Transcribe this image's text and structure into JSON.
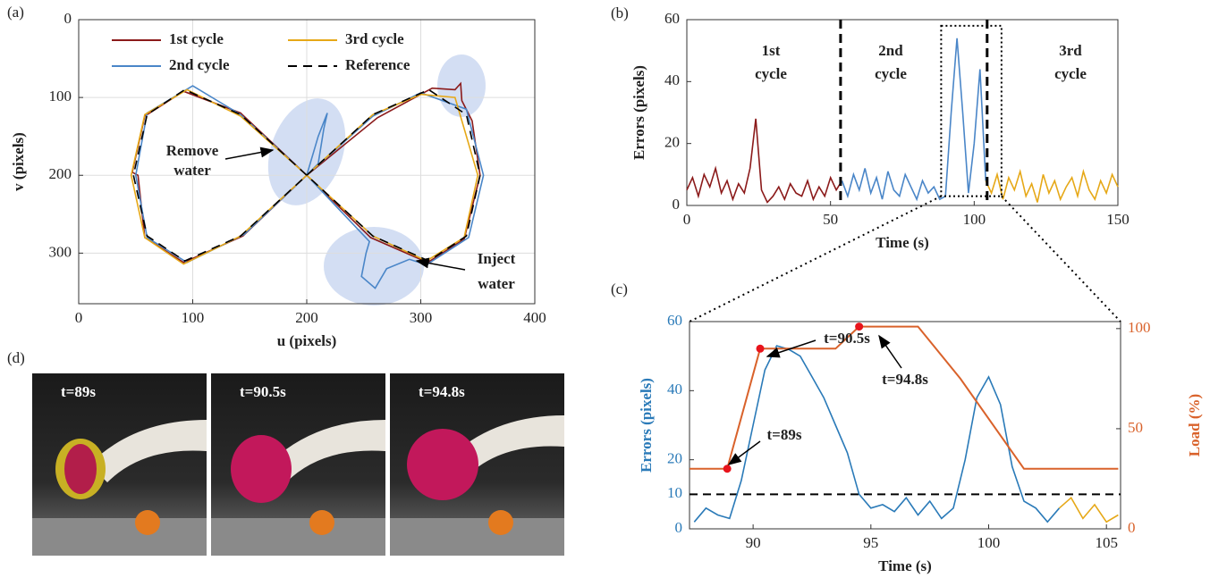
{
  "chart_data": [
    {
      "type": "line",
      "panel_label": "(a)",
      "xlabel": "u (pixels)",
      "ylabel": "v (pixels)",
      "xlim": [
        0,
        400
      ],
      "ylim": [
        0,
        365
      ],
      "y_inverted": true,
      "grid": true,
      "legend": "top",
      "xticks": [
        0,
        100,
        200,
        300,
        400
      ],
      "yticks": [
        0,
        100,
        200,
        300
      ],
      "series": [
        {
          "name": "1st cycle",
          "color": "#8b1a1a",
          "x": [
            200,
            262,
            310,
            330,
            335,
            336,
            345,
            352,
            338,
            306,
            256,
            200,
            142,
            92,
            58,
            47,
            52,
            58,
            92,
            144,
            200
          ],
          "values": [
            200,
            126,
            88,
            90,
            82,
            104,
            130,
            200,
            282,
            312,
            280,
            200,
            120,
            92,
            124,
            196,
            200,
            280,
            312,
            278,
            200
          ]
        },
        {
          "name": "2nd cycle",
          "color": "#4a86c8",
          "x": [
            200,
            258,
            300,
            340,
            355,
            342,
            305,
            290,
            270,
            260,
            248,
            252,
            255,
            200,
            210,
            218,
            215,
            210,
            200,
            142,
            100,
            60,
            50,
            60,
            95,
            145,
            200
          ],
          "values": [
            200,
            124,
            94,
            115,
            200,
            280,
            315,
            308,
            320,
            345,
            330,
            300,
            285,
            200,
            150,
            120,
            140,
            185,
            200,
            122,
            85,
            120,
            200,
            280,
            312,
            276,
            200
          ]
        },
        {
          "name": "3rd cycle",
          "color": "#e6a817",
          "x": [
            200,
            258,
            300,
            330,
            350,
            338,
            305,
            258,
            200,
            142,
            95,
            58,
            46,
            58,
            92,
            142,
            200
          ],
          "values": [
            200,
            122,
            96,
            100,
            200,
            280,
            310,
            278,
            200,
            124,
            90,
            122,
            200,
            280,
            314,
            278,
            200
          ]
        },
        {
          "name": "Reference",
          "color": "#000000",
          "dash": true,
          "x": [
            200,
            258,
            307,
            340,
            352,
            340,
            307,
            258,
            200,
            142,
            93,
            60,
            48,
            60,
            93,
            142,
            200
          ],
          "values": [
            200,
            122,
            90,
            122,
            200,
            278,
            310,
            278,
            200,
            122,
            90,
            122,
            200,
            278,
            310,
            278,
            200
          ]
        }
      ],
      "annotations": [
        [
          "Remove",
          "water"
        ],
        [
          "Inject",
          "water"
        ]
      ]
    },
    {
      "type": "line",
      "panel_label": "(b)",
      "xlabel": "Time (s)",
      "ylabel": "Errors (pixels)",
      "xlim": [
        0,
        150
      ],
      "ylim": [
        0,
        60
      ],
      "grid": false,
      "xticks": [
        0,
        50,
        100,
        150
      ],
      "yticks": [
        0,
        20,
        40,
        60
      ],
      "series": [
        {
          "color": "#8b1a1a",
          "x": [
            0,
            2,
            4,
            6,
            8,
            10,
            12,
            14,
            16,
            18,
            20,
            22,
            24,
            26,
            28,
            30,
            32,
            34,
            36,
            38,
            40,
            42,
            44,
            46,
            48,
            50,
            52,
            54
          ],
          "values": [
            5,
            9,
            3,
            10,
            6,
            12,
            4,
            8,
            2,
            7,
            4,
            12,
            28,
            5,
            1,
            3,
            6,
            2,
            7,
            4,
            3,
            8,
            2,
            6,
            3,
            9,
            5,
            8
          ]
        },
        {
          "color": "#4a86c8",
          "x": [
            54,
            56,
            58,
            60,
            62,
            64,
            66,
            68,
            70,
            72,
            74,
            76,
            78,
            80,
            82,
            84,
            86,
            88,
            90,
            92,
            94,
            96,
            98,
            100,
            102,
            104
          ],
          "values": [
            8,
            3,
            10,
            5,
            12,
            4,
            9,
            2,
            11,
            5,
            3,
            10,
            6,
            2,
            8,
            4,
            6,
            2,
            3,
            30,
            54,
            30,
            4,
            20,
            44,
            8
          ]
        },
        {
          "color": "#e6a817",
          "x": [
            104,
            106,
            108,
            110,
            112,
            114,
            116,
            118,
            120,
            122,
            124,
            126,
            128,
            130,
            132,
            134,
            136,
            138,
            140,
            142,
            144,
            146,
            148,
            150
          ],
          "values": [
            8,
            4,
            10,
            2,
            9,
            5,
            11,
            3,
            7,
            1,
            10,
            4,
            8,
            2,
            6,
            9,
            3,
            11,
            5,
            2,
            8,
            4,
            10,
            6
          ]
        }
      ],
      "vlines": [
        53.5,
        104.5
      ],
      "highlight": {
        "xlim": [
          88.5,
          109.5
        ],
        "ylim": [
          3,
          58
        ]
      },
      "annotations": [
        [
          "1st",
          "cycle"
        ],
        [
          "2nd",
          "cycle"
        ],
        [
          "3rd",
          "cycle"
        ]
      ]
    },
    {
      "type": "line",
      "panel_label": "(c)",
      "xlabel": "Time (s)",
      "ylabel": "Errors (pixels)",
      "y2label": "Load (%)",
      "xlim": [
        87.3,
        105.6
      ],
      "ylim": [
        0,
        60
      ],
      "y2lim": [
        0,
        103.5
      ],
      "grid": false,
      "xticks": [
        90,
        95,
        100,
        105
      ],
      "yticks": [
        0,
        10,
        20,
        40,
        60
      ],
      "y2ticks": [
        0,
        50,
        100
      ],
      "ycolor": "#2a7ab8",
      "y2color": "#d9622b",
      "series": [
        {
          "color": "#2a7ab8",
          "x": [
            87.5,
            88,
            88.5,
            89,
            89.5,
            90,
            90.5,
            91,
            91.5,
            92,
            92.5,
            93,
            93.5,
            94,
            94.5,
            95,
            95.5,
            96,
            96.5,
            97,
            97.5,
            98,
            98.5,
            99,
            99.5,
            100,
            100.5,
            101,
            101.5,
            102,
            102.5,
            103
          ],
          "values": [
            2,
            6,
            4,
            3,
            14,
            30,
            46,
            53,
            52,
            50,
            44,
            38,
            30,
            22,
            10,
            6,
            7,
            5,
            9,
            4,
            8,
            3,
            6,
            20,
            38,
            44,
            36,
            18,
            8,
            6,
            2,
            6
          ]
        },
        {
          "color": "#e6a817",
          "x": [
            103,
            103.5,
            104,
            104.5,
            105,
            105.5
          ],
          "values": [
            6,
            9,
            3,
            7,
            2,
            4
          ]
        },
        {
          "color": "#d9622b",
          "axis": "y2",
          "x": [
            87.3,
            88.9,
            90.3,
            93.5,
            94.5,
            97,
            98.8,
            101.5,
            105.5
          ],
          "values": [
            30,
            30,
            90,
            90,
            101,
            101,
            75,
            30,
            30
          ]
        }
      ],
      "hline": 10,
      "points": {
        "color": "#e8141c",
        "axis": "y2",
        "x": [
          88.9,
          90.3,
          94.5
        ],
        "values": [
          30,
          90,
          101
        ]
      },
      "annotations": [
        [
          "t=89s"
        ],
        [
          "t=90.5s"
        ],
        [
          "t=94.8s"
        ]
      ]
    }
  ],
  "photos": {
    "panel_label": "(d)",
    "captions": [
      "t=89s",
      "t=90.5s",
      "t=94.8s"
    ]
  }
}
